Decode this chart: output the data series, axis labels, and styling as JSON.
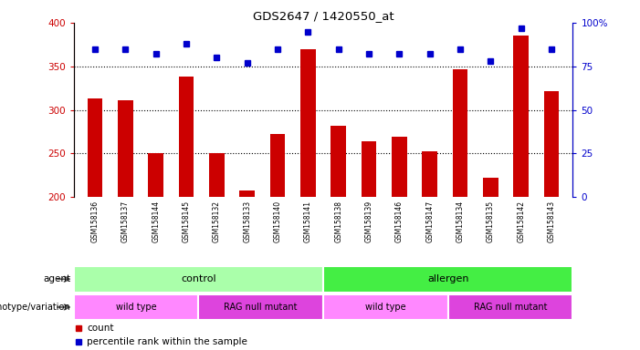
{
  "title": "GDS2647 / 1420550_at",
  "samples": [
    "GSM158136",
    "GSM158137",
    "GSM158144",
    "GSM158145",
    "GSM158132",
    "GSM158133",
    "GSM158140",
    "GSM158141",
    "GSM158138",
    "GSM158139",
    "GSM158146",
    "GSM158147",
    "GSM158134",
    "GSM158135",
    "GSM158142",
    "GSM158143"
  ],
  "counts": [
    313,
    311,
    250,
    338,
    250,
    207,
    272,
    370,
    282,
    264,
    269,
    253,
    347,
    222,
    385,
    321
  ],
  "percentiles": [
    85,
    85,
    82,
    88,
    80,
    77,
    85,
    95,
    85,
    82,
    82,
    82,
    85,
    78,
    97,
    85
  ],
  "ymin": 200,
  "ymax": 400,
  "yticks_left": [
    200,
    250,
    300,
    350,
    400
  ],
  "yticks_right": [
    0,
    25,
    50,
    75,
    100
  ],
  "bar_color": "#cc0000",
  "dot_color": "#0000cc",
  "agent_groups": [
    {
      "label": "control",
      "start": 0,
      "end": 8,
      "color": "#aaffaa"
    },
    {
      "label": "allergen",
      "start": 8,
      "end": 16,
      "color": "#44ee44"
    }
  ],
  "genotype_groups": [
    {
      "label": "wild type",
      "start": 0,
      "end": 4,
      "color": "#ff88ff"
    },
    {
      "label": "RAG null mutant",
      "start": 4,
      "end": 8,
      "color": "#dd44dd"
    },
    {
      "label": "wild type",
      "start": 8,
      "end": 12,
      "color": "#ff88ff"
    },
    {
      "label": "RAG null mutant",
      "start": 12,
      "end": 16,
      "color": "#dd44dd"
    }
  ],
  "tick_label_color_left": "#cc0000",
  "tick_label_color_right": "#0000cc",
  "legend_count_color": "#cc0000",
  "legend_pct_color": "#0000cc",
  "label_bg_color": "#dddddd"
}
